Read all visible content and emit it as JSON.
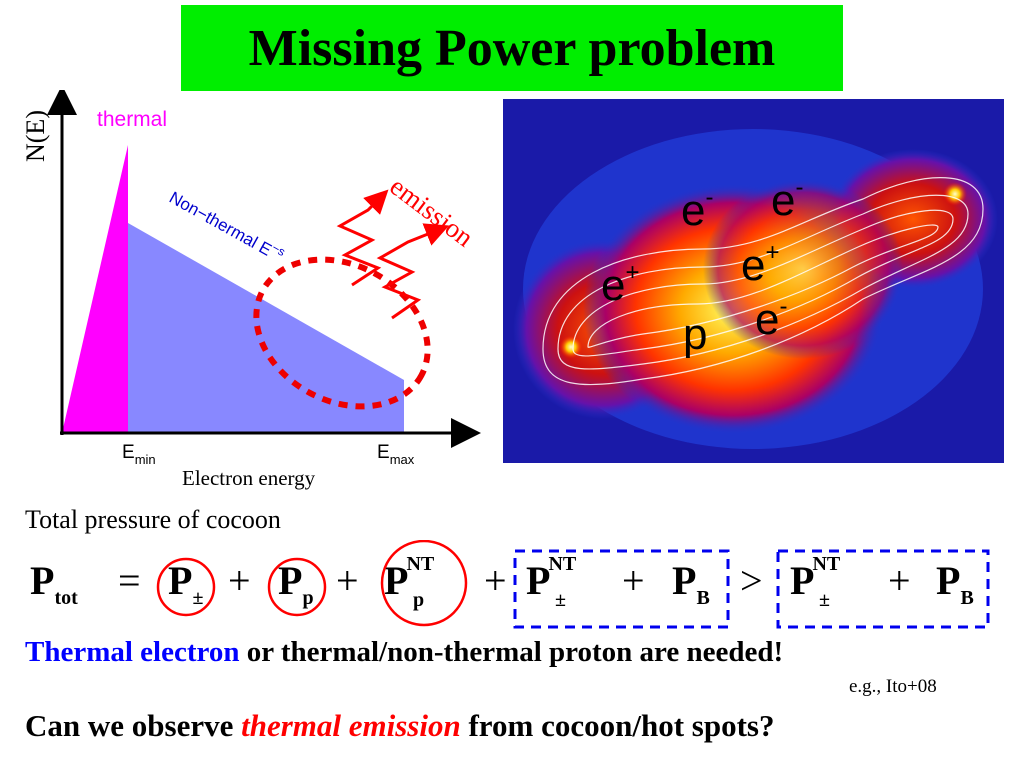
{
  "title": "Missing Power problem",
  "graph": {
    "y_axis_label": "N(E)",
    "x_axis_label": "Electron energy",
    "thermal_label": "thermal",
    "nonthermal_label": "Non−thermal E",
    "nonthermal_sup": "−s",
    "emission_label": "emission",
    "emin_main": "E",
    "emin_sub": "min",
    "emax_main": "E",
    "emax_sub": "max"
  },
  "image_labels": {
    "e_minus_1": "e",
    "e_minus_2": "e",
    "e_minus_3": "e",
    "e_plus_1": "e",
    "e_plus_2": "e",
    "minus_sign": "-",
    "plus_sign": "+",
    "proton": "p"
  },
  "total_pressure_label": "Total pressure of cocoon",
  "equation": {
    "p": "P",
    "tot": "tot",
    "pm": "±",
    "proton": "p",
    "nt": "NT",
    "b": "B",
    "eq": "=",
    "plus": "+",
    "gt": ">"
  },
  "statement": {
    "highlight": "Thermal electron",
    "rest": " or thermal/non-thermal proton are needed!"
  },
  "reference": "e.g., Ito+08",
  "question": {
    "before": "Can we observe ",
    "emph": "thermal emission",
    "after": " from cocoon/hot spots?"
  },
  "colors": {
    "title_bg": "#00ee00",
    "thermal": "#ff00ff",
    "nonthermal_fill": "#8888ff",
    "nonthermal_label": "#0000cc",
    "emission": "#ff0000",
    "highlight_blue": "#0000ff",
    "emph_red": "#ff0000"
  }
}
